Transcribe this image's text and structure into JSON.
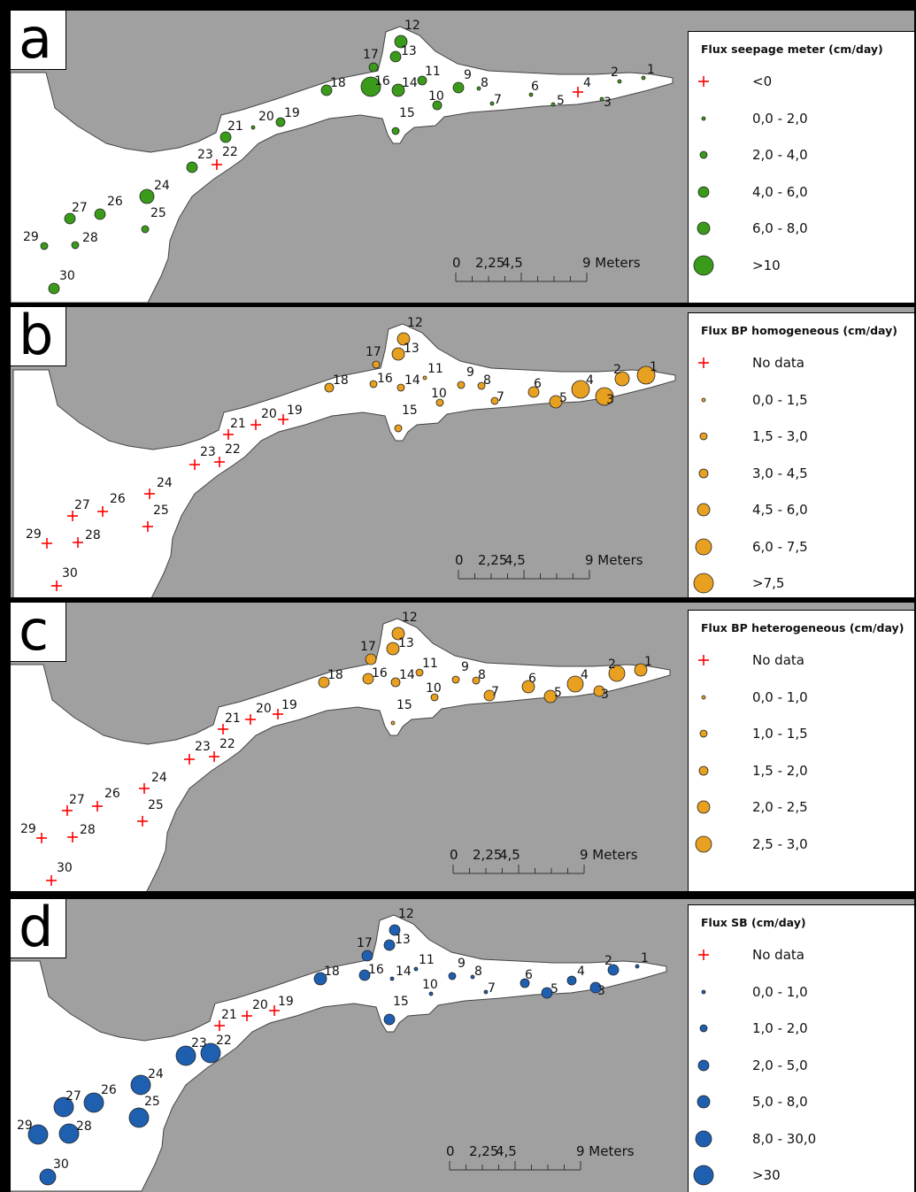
{
  "panels": [
    {
      "letter": "a",
      "legend_title": "Flux seepage meter (cm/day)",
      "legend": [
        "<0",
        "0,0 - 2,0",
        "2,0 - 4,0",
        "4,0 - 6,0",
        "6,0 - 8,0",
        ">10"
      ],
      "color": "#3a9a1a",
      "no_data_sites": [
        "4",
        "22"
      ]
    },
    {
      "letter": "b",
      "legend_title": "Flux BP homogeneous (cm/day)",
      "legend": [
        "No data",
        "0,0 - 1,5",
        "1,5 - 3,0",
        "3,0 - 4,5",
        "4,5 - 6,0",
        "6,0 - 7,5",
        ">7,5"
      ],
      "color": "#e8a020",
      "no_data_sites": [
        "19",
        "20",
        "21",
        "22",
        "23",
        "24",
        "25",
        "26",
        "27",
        "28",
        "29",
        "30"
      ]
    },
    {
      "letter": "c",
      "legend_title": "Flux BP heterogeneous (cm/day)",
      "legend": [
        "No data",
        "0,0 - 1,0",
        "1,0 - 1,5",
        "1,5 - 2,0",
        "2,0 - 2,5",
        "2,5 - 3,0"
      ],
      "color": "#e8a020",
      "no_data_sites": [
        "19",
        "20",
        "21",
        "22",
        "23",
        "24",
        "25",
        "26",
        "27",
        "28",
        "29",
        "30"
      ]
    },
    {
      "letter": "d",
      "legend_title": "Flux SB (cm/day)",
      "legend": [
        "No data",
        "0,0 - 1,0",
        "1,0 - 2,0",
        "2,0 - 5,0",
        "5,0 - 8,0",
        "8,0 - 30,0",
        ">30"
      ],
      "color": "#1f5fb0",
      "no_data_sites": [
        "19",
        "20",
        "21"
      ]
    }
  ],
  "site_labels": [
    "1",
    "2",
    "3",
    "4",
    "5",
    "6",
    "7",
    "8",
    "9",
    "10",
    "11",
    "12",
    "13",
    "14",
    "15",
    "16",
    "17",
    "18",
    "19",
    "20",
    "21",
    "22",
    "23",
    "24",
    "25",
    "26",
    "27",
    "28",
    "29",
    "30"
  ],
  "scale_bar": {
    "labels": [
      "0",
      "2,25",
      "4,5",
      "9 Meters"
    ]
  },
  "colors": {
    "land": "#a0a0a0",
    "water": "#ffffff",
    "no_data_marker": "#ff0000"
  }
}
